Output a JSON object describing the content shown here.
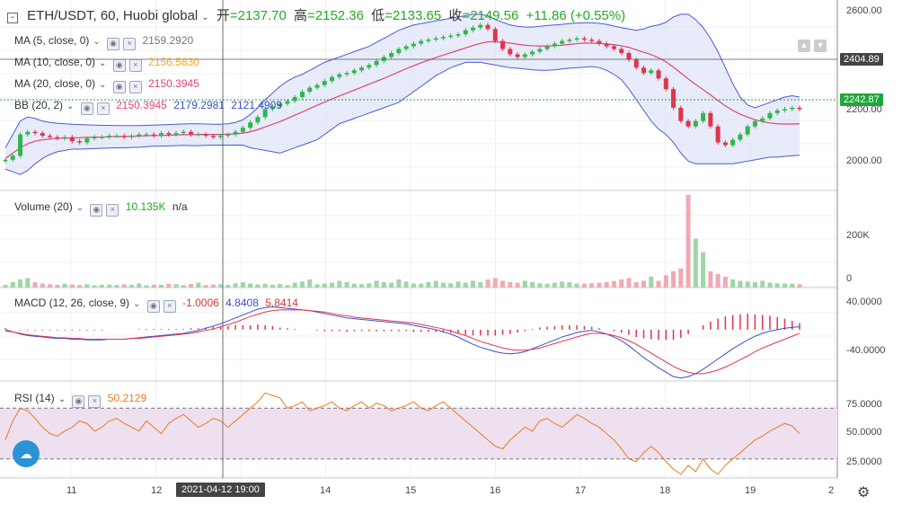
{
  "header": {
    "symbol": "ETH/USDT, 60, Huobi global",
    "open_label": "开",
    "open": "=2137.70",
    "high_label": "高",
    "high": "=2152.36",
    "low_label": "低",
    "low": "=2133.65",
    "close_label": "收",
    "close": "=2149.56",
    "change": "+11.86 (+0.55%)"
  },
  "indicators": {
    "ma5": {
      "label": "MA (5, close, 0)",
      "value": "2159.2920",
      "color": "#888888"
    },
    "ma10": {
      "label": "MA (10, close, 0)",
      "value": "2156.5830",
      "color": "#f5a623"
    },
    "ma20": {
      "label": "MA (20, close, 0)",
      "value": "2150.3945",
      "color": "#e0447a"
    },
    "bb": {
      "label": "BB (20, 2)",
      "v1": "2150.3945",
      "v2": "2179.2981",
      "v3": "2121.4909"
    },
    "volume": {
      "label": "Volume (20)",
      "v1": "10.135K",
      "v2": "n/a"
    },
    "macd": {
      "label": "MACD (12, 26, close, 9)",
      "v1": "-1.0006",
      "v2": "4.8408",
      "v3": "5.8414"
    },
    "rsi": {
      "label": "RSI (14)",
      "value": "50.2129"
    }
  },
  "price_axis": {
    "ticks": [
      "2600.00",
      "2400.00",
      "2200.00",
      "2000.00"
    ],
    "tag_crosshair": "2404.89",
    "tag_last": "2242.87"
  },
  "volume_axis": {
    "ticks": [
      "200K",
      "0"
    ]
  },
  "macd_axis": {
    "ticks": [
      "40.0000",
      "-40.0000"
    ]
  },
  "rsi_axis": {
    "ticks": [
      "75.0000",
      "50.0000",
      "25.0000"
    ]
  },
  "time_axis": {
    "ticks": [
      "11",
      "12",
      "13",
      "14",
      "15",
      "16",
      "17",
      "18",
      "19",
      "2"
    ],
    "crosshair_label": "2021-04-12   19:00"
  },
  "colors": {
    "up": "#2db84a",
    "down": "#e0344b",
    "bb_fill": "#d8def5",
    "bb_line": "#4a5ad8",
    "rsi_band": "#efe0f0"
  },
  "chart_data": {
    "type": "line",
    "price": {
      "ylim": [
        1940,
        2640
      ],
      "close": [
        2055,
        2070,
        2150,
        2160,
        2155,
        2145,
        2140,
        2135,
        2140,
        2125,
        2120,
        2135,
        2140,
        2140,
        2145,
        2145,
        2140,
        2145,
        2150,
        2150,
        2145,
        2155,
        2150,
        2155,
        2160,
        2150,
        2150,
        2145,
        2140,
        2145,
        2150,
        2160,
        2175,
        2195,
        2215,
        2245,
        2255,
        2265,
        2275,
        2290,
        2310,
        2325,
        2335,
        2350,
        2365,
        2375,
        2380,
        2390,
        2400,
        2410,
        2425,
        2440,
        2455,
        2470,
        2480,
        2490,
        2500,
        2505,
        2510,
        2515,
        2520,
        2525,
        2540,
        2550,
        2560,
        2545,
        2500,
        2470,
        2450,
        2440,
        2450,
        2460,
        2470,
        2480,
        2490,
        2500,
        2505,
        2510,
        2505,
        2500,
        2490,
        2480,
        2470,
        2455,
        2430,
        2400,
        2380,
        2390,
        2360,
        2320,
        2250,
        2200,
        2180,
        2200,
        2230,
        2180,
        2120,
        2110,
        2130,
        2150,
        2180,
        2200,
        2210,
        2230,
        2240,
        2245,
        2250,
        2245
      ],
      "ma20": [
        2060,
        2080,
        2100,
        2115,
        2125,
        2130,
        2133,
        2135,
        2136,
        2137,
        2138,
        2139,
        2140,
        2140,
        2141,
        2142,
        2142,
        2143,
        2144,
        2145,
        2146,
        2146,
        2147,
        2148,
        2149,
        2149,
        2150,
        2150,
        2150,
        2150,
        2151,
        2152,
        2155,
        2160,
        2168,
        2178,
        2188,
        2198,
        2210,
        2222,
        2234,
        2247,
        2259,
        2271,
        2283,
        2294,
        2305,
        2316,
        2327,
        2338,
        2349,
        2360,
        2372,
        2384,
        2396,
        2407,
        2418,
        2428,
        2438,
        2447,
        2456,
        2465,
        2474,
        2483,
        2491,
        2497,
        2497,
        2495,
        2492,
        2488,
        2484,
        2482,
        2481,
        2481,
        2482,
        2484,
        2487,
        2490,
        2492,
        2492,
        2491,
        2489,
        2486,
        2482,
        2476,
        2467,
        2458,
        2449,
        2437,
        2422,
        2402,
        2380,
        2358,
        2337,
        2318,
        2298,
        2277,
        2257,
        2240,
        2226,
        2215,
        2205,
        2198,
        2193,
        2190,
        2189,
        2189,
        2190
      ],
      "bb_upper": [
        2100,
        2150,
        2200,
        2215,
        2210,
        2200,
        2195,
        2192,
        2190,
        2188,
        2187,
        2186,
        2185,
        2184,
        2184,
        2183,
        2183,
        2183,
        2183,
        2184,
        2185,
        2186,
        2187,
        2188,
        2189,
        2190,
        2190,
        2189,
        2188,
        2188,
        2190,
        2195,
        2205,
        2225,
        2250,
        2280,
        2305,
        2330,
        2350,
        2365,
        2375,
        2390,
        2405,
        2420,
        2430,
        2440,
        2450,
        2460,
        2470,
        2480,
        2495,
        2510,
        2525,
        2540,
        2550,
        2560,
        2565,
        2570,
        2575,
        2580,
        2585,
        2590,
        2595,
        2600,
        2600,
        2595,
        2580,
        2570,
        2560,
        2555,
        2552,
        2552,
        2555,
        2558,
        2560,
        2562,
        2565,
        2567,
        2568,
        2568,
        2566,
        2562,
        2556,
        2550,
        2545,
        2540,
        2545,
        2555,
        2560,
        2570,
        2590,
        2600,
        2600,
        2580,
        2550,
        2510,
        2460,
        2400,
        2340,
        2290,
        2260,
        2250,
        2260,
        2270,
        2280,
        2290,
        2295,
        2290
      ],
      "bb_lower": [
        2020,
        2010,
        2000,
        2015,
        2040,
        2060,
        2075,
        2085,
        2090,
        2095,
        2095,
        2096,
        2097,
        2098,
        2099,
        2100,
        2100,
        2101,
        2102,
        2104,
        2106,
        2106,
        2107,
        2108,
        2109,
        2108,
        2108,
        2109,
        2110,
        2110,
        2110,
        2110,
        2110,
        2100,
        2095,
        2090,
        2085,
        2080,
        2090,
        2100,
        2110,
        2120,
        2130,
        2150,
        2170,
        2190,
        2200,
        2210,
        2220,
        2230,
        2240,
        2250,
        2260,
        2270,
        2290,
        2310,
        2330,
        2350,
        2370,
        2385,
        2400,
        2410,
        2420,
        2420,
        2420,
        2415,
        2410,
        2405,
        2400,
        2398,
        2395,
        2392,
        2390,
        2390,
        2392,
        2395,
        2398,
        2400,
        2402,
        2404,
        2400,
        2390,
        2375,
        2355,
        2320,
        2280,
        2240,
        2200,
        2170,
        2150,
        2120,
        2080,
        2050,
        2040,
        2040,
        2040,
        2040,
        2040,
        2040,
        2045,
        2050,
        2055,
        2060,
        2065,
        2065,
        2068,
        2070,
        2072
      ]
    },
    "volume": {
      "ylim": [
        0,
        350000
      ],
      "values": [
        10000,
        20000,
        30000,
        35000,
        20000,
        15000,
        12000,
        10000,
        14000,
        11000,
        9000,
        12000,
        8000,
        10000,
        11000,
        9000,
        12000,
        10000,
        15000,
        8000,
        11000,
        10000,
        14000,
        12000,
        9000,
        13000,
        18000,
        9000,
        11000,
        12000,
        10000,
        16000,
        20000,
        15000,
        12000,
        14000,
        10000,
        13000,
        9000,
        18000,
        22000,
        30000,
        12000,
        15000,
        18000,
        25000,
        20000,
        14000,
        12000,
        16000,
        25000,
        20000,
        18000,
        30000,
        22000,
        15000,
        14000,
        20000,
        25000,
        18000,
        16000,
        22000,
        18000,
        25000,
        20000,
        30000,
        35000,
        25000,
        20000,
        18000,
        25000,
        20000,
        16000,
        14000,
        18000,
        22000,
        20000,
        15000,
        14000,
        16000,
        18000,
        20000,
        24000,
        30000,
        35000,
        20000,
        25000,
        40000,
        25000,
        45000,
        60000,
        70000,
        340000,
        180000,
        130000,
        60000,
        50000,
        40000,
        30000,
        25000,
        22000,
        20000,
        25000,
        18000,
        16000,
        15000,
        14000,
        12000
      ]
    },
    "macd": {
      "ylim": [
        -70,
        55
      ],
      "dif": [
        0,
        -3,
        -6,
        -8,
        -9,
        -10,
        -11,
        -12,
        -12,
        -13,
        -13,
        -14,
        -14,
        -14,
        -13,
        -13,
        -13,
        -12,
        -11,
        -10,
        -9,
        -8,
        -7,
        -6,
        -5,
        -3,
        -1,
        2,
        5,
        8,
        12,
        16,
        20,
        24,
        28,
        30,
        31,
        30,
        29,
        28,
        27,
        26,
        24,
        22,
        20,
        18,
        16,
        15,
        14,
        13,
        12,
        11,
        10,
        9,
        8,
        6,
        4,
        2,
        0,
        -3,
        -6,
        -10,
        -15,
        -20,
        -24,
        -27,
        -30,
        -32,
        -33,
        -32,
        -30,
        -26,
        -22,
        -18,
        -14,
        -10,
        -7,
        -4,
        -2,
        -1,
        -3,
        -6,
        -10,
        -15,
        -22,
        -30,
        -38,
        -45,
        -52,
        -58,
        -64,
        -66,
        -64,
        -60,
        -54,
        -47,
        -40,
        -33,
        -26,
        -20,
        -14,
        -9,
        -5,
        -2,
        0,
        2,
        3,
        4
      ],
      "dea": [
        -2,
        -3,
        -5,
        -7,
        -8,
        -9,
        -10,
        -11,
        -11,
        -12,
        -12,
        -13,
        -13,
        -13,
        -13,
        -13,
        -13,
        -12,
        -12,
        -11,
        -10,
        -9,
        -8,
        -7,
        -6,
        -5,
        -3,
        -1,
        1,
        4,
        7,
        10,
        14,
        18,
        21,
        24,
        26,
        27,
        27,
        27,
        27,
        26,
        25,
        24,
        22,
        20,
        19,
        17,
        16,
        15,
        14,
        13,
        12,
        11,
        10,
        9,
        7,
        5,
        3,
        1,
        -2,
        -5,
        -8,
        -12,
        -16,
        -19,
        -22,
        -25,
        -27,
        -28,
        -28,
        -27,
        -25,
        -22,
        -19,
        -16,
        -13,
        -10,
        -7,
        -5,
        -5,
        -6,
        -8,
        -11,
        -15,
        -20,
        -26,
        -32,
        -38,
        -44,
        -50,
        -55,
        -58,
        -60,
        -60,
        -58,
        -55,
        -51,
        -46,
        -41,
        -36,
        -30,
        -25,
        -21,
        -17,
        -13,
        -9,
        -5
      ]
    },
    "rsi": {
      "ylim": [
        15,
        90
      ],
      "values": [
        45,
        60,
        70,
        68,
        62,
        55,
        50,
        48,
        52,
        55,
        60,
        58,
        52,
        55,
        60,
        62,
        58,
        55,
        52,
        60,
        55,
        50,
        58,
        62,
        65,
        60,
        55,
        58,
        62,
        60,
        55,
        60,
        65,
        70,
        75,
        82,
        80,
        78,
        70,
        72,
        75,
        68,
        70,
        72,
        75,
        70,
        68,
        72,
        75,
        70,
        74,
        72,
        68,
        70,
        72,
        75,
        70,
        68,
        72,
        75,
        70,
        65,
        60,
        55,
        50,
        45,
        40,
        38,
        45,
        50,
        55,
        52,
        60,
        62,
        58,
        55,
        60,
        65,
        62,
        58,
        55,
        50,
        45,
        38,
        30,
        28,
        35,
        40,
        35,
        28,
        22,
        18,
        25,
        20,
        30,
        22,
        18,
        25,
        30,
        35,
        40,
        45,
        48,
        52,
        55,
        58,
        56,
        50
      ]
    },
    "rsi_band": [
      30,
      70
    ]
  }
}
